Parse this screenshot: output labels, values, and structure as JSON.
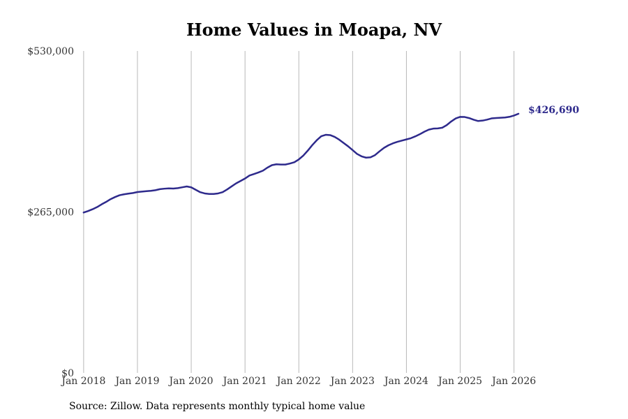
{
  "chart_data": {
    "type": "line",
    "title": "Home Values in Moapa, NV",
    "xlabel": "",
    "ylabel": "",
    "ylim": [
      0,
      530000
    ],
    "y_ticks": [
      {
        "value": 0,
        "label": "$0"
      },
      {
        "value": 265000,
        "label": "$265,000"
      },
      {
        "value": 530000,
        "label": "$530,000"
      }
    ],
    "x_ticks": [
      {
        "value": 2018.0,
        "label": "Jan 2018"
      },
      {
        "value": 2019.0,
        "label": "Jan 2019"
      },
      {
        "value": 2020.0,
        "label": "Jan 2020"
      },
      {
        "value": 2021.0,
        "label": "Jan 2021"
      },
      {
        "value": 2022.0,
        "label": "Jan 2022"
      },
      {
        "value": 2023.0,
        "label": "Jan 2023"
      },
      {
        "value": 2024.0,
        "label": "Jan 2024"
      },
      {
        "value": 2025.0,
        "label": "Jan 2025"
      },
      {
        "value": 2026.0,
        "label": "Jan 2026"
      }
    ],
    "xlim": [
      2017.82,
      2026.9
    ],
    "grid": "vertical",
    "line_color": "#2e2a8c",
    "end_label": "$426,690",
    "series": [
      {
        "name": "Typical home value",
        "points": [
          [
            2018.0,
            264000
          ],
          [
            2018.083,
            266500
          ],
          [
            2018.167,
            269500
          ],
          [
            2018.25,
            273000
          ],
          [
            2018.333,
            277500
          ],
          [
            2018.417,
            281500
          ],
          [
            2018.5,
            286000
          ],
          [
            2018.583,
            289500
          ],
          [
            2018.667,
            292500
          ],
          [
            2018.75,
            294000
          ],
          [
            2018.833,
            295200
          ],
          [
            2018.917,
            296200
          ],
          [
            2019.0,
            297800
          ],
          [
            2019.083,
            298500
          ],
          [
            2019.167,
            299200
          ],
          [
            2019.25,
            299800
          ],
          [
            2019.333,
            300800
          ],
          [
            2019.417,
            302500
          ],
          [
            2019.5,
            303300
          ],
          [
            2019.583,
            303800
          ],
          [
            2019.667,
            303500
          ],
          [
            2019.75,
            304200
          ],
          [
            2019.833,
            305600
          ],
          [
            2019.917,
            307000
          ],
          [
            2020.0,
            305500
          ],
          [
            2020.083,
            301500
          ],
          [
            2020.167,
            297500
          ],
          [
            2020.25,
            295500
          ],
          [
            2020.333,
            294600
          ],
          [
            2020.417,
            294600
          ],
          [
            2020.5,
            295500
          ],
          [
            2020.583,
            297500
          ],
          [
            2020.667,
            302000
          ],
          [
            2020.75,
            307000
          ],
          [
            2020.833,
            312000
          ],
          [
            2020.917,
            316000
          ],
          [
            2021.0,
            320000
          ],
          [
            2021.083,
            325000
          ],
          [
            2021.167,
            327500
          ],
          [
            2021.25,
            330000
          ],
          [
            2021.333,
            333000
          ],
          [
            2021.417,
            338000
          ],
          [
            2021.5,
            342000
          ],
          [
            2021.583,
            343500
          ],
          [
            2021.667,
            343000
          ],
          [
            2021.75,
            343000
          ],
          [
            2021.833,
            344700
          ],
          [
            2021.917,
            346800
          ],
          [
            2022.0,
            351500
          ],
          [
            2022.083,
            357800
          ],
          [
            2022.167,
            366000
          ],
          [
            2022.25,
            375000
          ],
          [
            2022.333,
            383000
          ],
          [
            2022.417,
            389700
          ],
          [
            2022.5,
            392000
          ],
          [
            2022.583,
            391500
          ],
          [
            2022.667,
            388500
          ],
          [
            2022.75,
            384000
          ],
          [
            2022.833,
            378500
          ],
          [
            2022.917,
            373000
          ],
          [
            2023.0,
            366800
          ],
          [
            2023.083,
            360500
          ],
          [
            2023.167,
            356500
          ],
          [
            2023.25,
            354400
          ],
          [
            2023.333,
            355000
          ],
          [
            2023.417,
            358600
          ],
          [
            2023.5,
            364800
          ],
          [
            2023.583,
            370500
          ],
          [
            2023.667,
            374800
          ],
          [
            2023.75,
            378000
          ],
          [
            2023.833,
            380500
          ],
          [
            2023.917,
            382500
          ],
          [
            2024.0,
            384400
          ],
          [
            2024.083,
            386400
          ],
          [
            2024.167,
            389500
          ],
          [
            2024.25,
            393000
          ],
          [
            2024.333,
            397100
          ],
          [
            2024.417,
            400500
          ],
          [
            2024.5,
            402200
          ],
          [
            2024.583,
            402500
          ],
          [
            2024.667,
            403700
          ],
          [
            2024.75,
            408000
          ],
          [
            2024.833,
            414000
          ],
          [
            2024.917,
            419000
          ],
          [
            2025.0,
            421500
          ],
          [
            2025.083,
            421300
          ],
          [
            2025.167,
            419500
          ],
          [
            2025.25,
            416800
          ],
          [
            2025.333,
            414700
          ],
          [
            2025.417,
            415400
          ],
          [
            2025.5,
            417000
          ],
          [
            2025.583,
            419000
          ],
          [
            2025.667,
            419600
          ],
          [
            2025.75,
            420000
          ],
          [
            2025.833,
            420500
          ],
          [
            2025.917,
            421600
          ],
          [
            2026.0,
            423700
          ],
          [
            2026.083,
            426690
          ]
        ]
      }
    ]
  },
  "source_text": "Source: Zillow. Data represents monthly typical home value"
}
